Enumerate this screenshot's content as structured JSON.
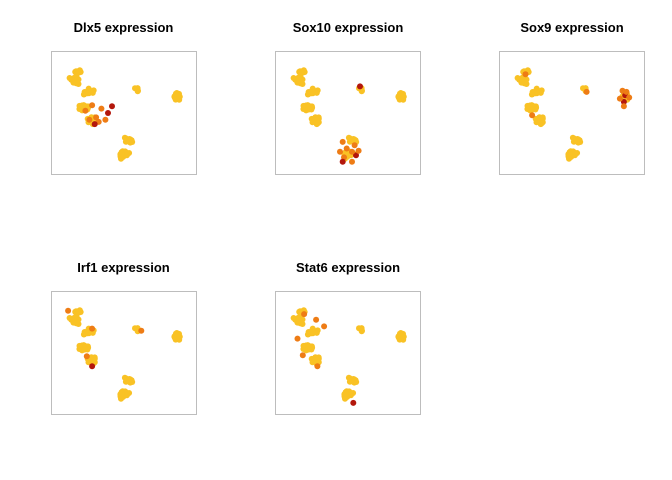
{
  "figure": {
    "background": "#ffffff"
  },
  "chart_data": [
    {
      "type": "scatter",
      "title": "Dlx5 expression",
      "xlim": [
        0,
        10
      ],
      "ylim": [
        0,
        10
      ],
      "colors": {
        "base": "#f9c225",
        "mid": "#ee7c15",
        "high": "#b3170c"
      },
      "points": [
        {
          "x": 4.1,
          "y": 5.6,
          "level": "high"
        },
        {
          "x": 2.1,
          "y": 5.2,
          "level": "mid"
        },
        {
          "x": 2.6,
          "y": 5.7,
          "level": "mid"
        },
        {
          "x": 3.3,
          "y": 5.4,
          "level": "mid"
        },
        {
          "x": 2.9,
          "y": 4.6,
          "level": "mid"
        },
        {
          "x": 3.8,
          "y": 5.0,
          "level": "high"
        },
        {
          "x": 3.1,
          "y": 4.2,
          "level": "mid"
        },
        {
          "x": 2.4,
          "y": 4.4,
          "level": "mid"
        },
        {
          "x": 3.6,
          "y": 4.4,
          "level": "mid"
        },
        {
          "x": 2.8,
          "y": 4.0,
          "level": "high"
        }
      ]
    },
    {
      "type": "scatter",
      "title": "Sox10 expression",
      "xlim": [
        0,
        10
      ],
      "ylim": [
        0,
        10
      ],
      "colors": {
        "base": "#f9c225",
        "mid": "#ee7c15",
        "high": "#b3170c"
      },
      "points": [
        {
          "x": 5.9,
          "y": 7.4,
          "level": "high"
        },
        {
          "x": 5.6,
          "y": 1.2,
          "level": "high"
        },
        {
          "x": 5.3,
          "y": 1.5,
          "level": "mid"
        },
        {
          "x": 4.7,
          "y": 1.0,
          "level": "mid"
        },
        {
          "x": 4.9,
          "y": 1.8,
          "level": "mid"
        },
        {
          "x": 5.5,
          "y": 2.1,
          "level": "mid"
        },
        {
          "x": 4.4,
          "y": 1.5,
          "level": "mid"
        },
        {
          "x": 4.6,
          "y": 2.4,
          "level": "mid"
        },
        {
          "x": 5.8,
          "y": 1.6,
          "level": "mid"
        },
        {
          "x": 5.3,
          "y": 0.6,
          "level": "mid"
        },
        {
          "x": 4.6,
          "y": 0.6,
          "level": "high"
        }
      ]
    },
    {
      "type": "scatter",
      "title": "Sox9 expression",
      "xlim": [
        0,
        10
      ],
      "ylim": [
        0,
        10
      ],
      "colors": {
        "base": "#f9c225",
        "mid": "#ee7c15",
        "high": "#b3170c"
      },
      "points": [
        {
          "x": 9.0,
          "y": 6.6,
          "level": "high"
        },
        {
          "x": 8.9,
          "y": 6.0,
          "level": "high"
        },
        {
          "x": 8.8,
          "y": 7.0,
          "level": "mid"
        },
        {
          "x": 9.1,
          "y": 6.9,
          "level": "mid"
        },
        {
          "x": 8.6,
          "y": 6.3,
          "level": "mid"
        },
        {
          "x": 9.3,
          "y": 6.4,
          "level": "mid"
        },
        {
          "x": 8.9,
          "y": 5.6,
          "level": "mid"
        },
        {
          "x": 6.1,
          "y": 6.9,
          "level": "mid"
        },
        {
          "x": 2.0,
          "y": 4.8,
          "level": "mid"
        },
        {
          "x": 1.5,
          "y": 8.5,
          "level": "mid"
        }
      ]
    },
    {
      "type": "scatter",
      "title": "Irf1 expression",
      "xlim": [
        0,
        10
      ],
      "ylim": [
        0,
        10
      ],
      "colors": {
        "base": "#f9c225",
        "mid": "#ee7c15",
        "high": "#b3170c"
      },
      "points": [
        {
          "x": 2.6,
          "y": 3.8,
          "level": "high"
        },
        {
          "x": 6.3,
          "y": 7.0,
          "level": "mid"
        },
        {
          "x": 0.8,
          "y": 8.8,
          "level": "mid"
        },
        {
          "x": 2.2,
          "y": 4.7,
          "level": "mid"
        },
        {
          "x": 2.6,
          "y": 7.2,
          "level": "mid"
        }
      ]
    },
    {
      "type": "scatter",
      "title": "Stat6 expression",
      "xlim": [
        0,
        10
      ],
      "ylim": [
        0,
        10
      ],
      "colors": {
        "base": "#f9c225",
        "mid": "#ee7c15",
        "high": "#b3170c"
      },
      "points": [
        {
          "x": 5.4,
          "y": 0.5,
          "level": "high"
        },
        {
          "x": 1.7,
          "y": 8.5,
          "level": "mid"
        },
        {
          "x": 1.2,
          "y": 6.3,
          "level": "mid"
        },
        {
          "x": 2.6,
          "y": 8.0,
          "level": "mid"
        },
        {
          "x": 2.7,
          "y": 3.8,
          "level": "mid"
        },
        {
          "x": 3.2,
          "y": 7.4,
          "level": "mid"
        },
        {
          "x": 1.6,
          "y": 4.8,
          "level": "mid"
        }
      ]
    }
  ]
}
